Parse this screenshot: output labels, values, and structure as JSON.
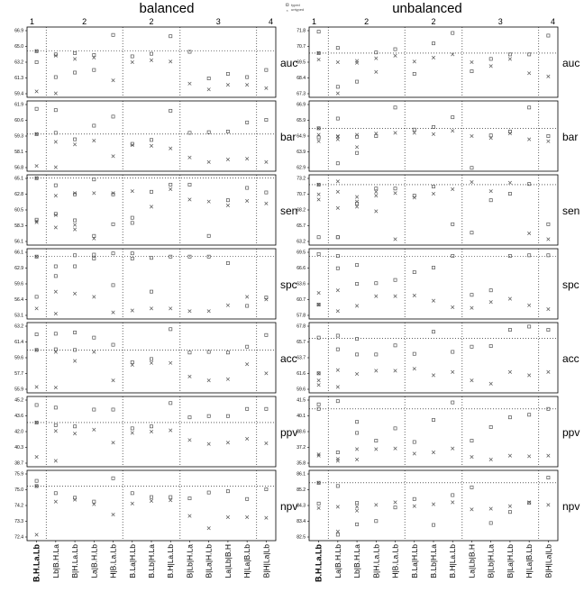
{
  "chart_data": {
    "type": "scatter",
    "panel_titles": [
      "balanced",
      "unbalanced"
    ],
    "legend": {
      "placement": "top-center",
      "entries": [
        {
          "name": "typed",
          "marker": "square"
        },
        {
          "name": "untyped",
          "marker": "cross"
        }
      ]
    },
    "group_labels": [
      "1",
      "2",
      "2",
      "3",
      "4"
    ],
    "metrics": [
      {
        "name": "auc",
        "balanced_ticks": [
          "66.9",
          "65.0",
          "63.2",
          "61.3",
          "59.4"
        ],
        "unbalanced_ticks": [
          "71.8",
          "70.7",
          "69.5",
          "68.4",
          "67.3"
        ]
      },
      {
        "name": "bar",
        "balanced_ticks": [
          "61.9",
          "60.6",
          "59.3",
          "58.1",
          "56.8"
        ],
        "unbalanced_ticks": [
          "66.9",
          "65.9",
          "64.9",
          "63.9",
          "62.9"
        ]
      },
      {
        "name": "sen",
        "balanced_ticks": [
          "65.1",
          "62.8",
          "60.5",
          "58.3",
          "56.1"
        ],
        "unbalanced_ticks": [
          "73.2",
          "70.7",
          "68.2",
          "65.7",
          "63.2"
        ]
      },
      {
        "name": "spc",
        "balanced_ticks": [
          "66.1",
          "62.9",
          "59.6",
          "56.4",
          "53.1"
        ],
        "unbalanced_ticks": [
          "69.5",
          "66.6",
          "63.6",
          "60.7",
          "57.8"
        ]
      },
      {
        "name": "acc",
        "balanced_ticks": [
          "63.2",
          "61.4",
          "59.6",
          "57.7",
          "55.9"
        ],
        "unbalanced_ticks": [
          "67.8",
          "65.7",
          "63.7",
          "61.6",
          "59.6"
        ]
      },
      {
        "name": "ppv",
        "balanced_ticks": [
          "45.2",
          "43.6",
          "42.0",
          "40.3",
          "38.7"
        ],
        "unbalanced_ticks": [
          "41.5",
          "40.1",
          "38.6",
          "37.2",
          "35.8"
        ]
      },
      {
        "name": "npv",
        "balanced_ticks": [
          "75.9",
          "75.0",
          "74.2",
          "73.3",
          "72.4"
        ],
        "unbalanced_ticks": [
          "86.1",
          "85.2",
          "84.3",
          "83.4",
          "82.5"
        ]
      }
    ],
    "balanced_methods": [
      "B.H.La.Lb",
      "Lb|B.H.La",
      "B|H.La.Lb",
      "La|B.H.Lb",
      "H|B.La.Lb",
      "B.La|H.Lb",
      "B.Lb|H.La",
      "B.H|La.Lb",
      "B|Lb|H.La",
      "B|La|H.Lb",
      "La|Lb|B.H",
      "H|La|B.Lb",
      "B|H|La|Lb"
    ],
    "unbalanced_methods": [
      "B.H.La.Lb",
      "La|B.H.Lb",
      "Lb|B.H.La",
      "B|H.La.Lb",
      "H|B.La.Lb",
      "B.La|H.Lb",
      "B.Lb|H.La",
      "B.H|La.Lb",
      "La|Lb|B.H",
      "B|Lb|H.La",
      "B|La|H.Lb",
      "H|La|B.Lb",
      "B|H|La|Lb"
    ],
    "baseline_fraction": {
      "balanced": [
        0.67,
        0.53,
        0.99,
        0.92,
        0.62,
        0.64,
        0.8
      ],
      "unbalanced": [
        0.64,
        0.62,
        0.89,
        0.92,
        0.8,
        0.85,
        0.85
      ]
    },
    "points": {
      "balanced": {
        "auc": {
          "typed": [
            0.67,
            0.62,
            0.64,
            0.61,
            0.92,
            0.59,
            0.63,
            0.9,
            0.66,
            0.25,
            0.32,
            0.27,
            0.38,
            0.5,
            0.27,
            0.34,
            0.38
          ],
          "untyped": [
            0.67,
            0.6,
            0.55,
            0.57,
            0.22,
            0.5,
            0.53,
            0.51,
            0.17,
            0.08,
            0.15,
            0.15,
            0.1,
            0.05,
            0.02
          ]
        },
        "bar": {
          "typed": [
            0.53,
            0.55,
            0.45,
            0.66,
            0.8,
            0.38,
            0.44,
            0.89,
            0.55,
            0.56,
            0.57,
            0.71,
            0.75,
            0.92,
            0.9
          ],
          "untyped": [
            0.53,
            0.41,
            0.37,
            0.43,
            0.19,
            0.36,
            0.35,
            0.31,
            0.17,
            0.1,
            0.14,
            0.15,
            0.1,
            0.04,
            0.02
          ]
        },
        "sen": {
          "typed": [
            0.99,
            0.88,
            0.74,
            0.97,
            0.74,
            0.38,
            0.78,
            0.89,
            0.89,
            0.1,
            0.65,
            0.84,
            0.77,
            0.35,
            0.44,
            0.34,
            0.1,
            0.28,
            0.3
          ],
          "untyped": [
            0.99,
            0.72,
            0.76,
            0.76,
            0.76,
            0.79,
            0.55,
            0.82,
            0.66,
            0.63,
            0.57,
            0.64,
            0.6,
            0.31,
            0.23,
            0.2,
            0.06
          ],
          "untyped_extra": [
            0.33,
            0.42,
            0.27
          ]
        },
        "spc": {
          "typed": [
            0.92,
            0.77,
            0.77,
            0.89,
            0.48,
            0.89,
            0.38,
            0.92,
            0.92,
            0.92,
            0.82,
            0.16,
            0.29,
            0.3,
            0.62,
            0.94,
            0.95,
            0.97,
            0.97,
            0.9
          ],
          "untyped": [
            0.92,
            0.38,
            0.35,
            0.3,
            0.06,
            0.09,
            0.12,
            0.12,
            0.08,
            0.08,
            0.17,
            0.3,
            0.26,
            0.12,
            0.04
          ]
        },
        "acc": {
          "typed": [
            0.62,
            0.63,
            0.62,
            0.81,
            0.7,
            0.43,
            0.48,
            0.94,
            0.58,
            0.59,
            0.58,
            0.67,
            0.85,
            0.86,
            0.87,
            0.89
          ],
          "untyped": [
            0.62,
            0.59,
            0.45,
            0.59,
            0.15,
            0.39,
            0.42,
            0.42,
            0.21,
            0.15,
            0.17,
            0.4,
            0.26,
            0.05,
            0.04
          ]
        },
        "ppv": {
          "typed": [
            0.64,
            0.6,
            0.58,
            0.84,
            0.84,
            0.55,
            0.58,
            0.94,
            0.72,
            0.74,
            0.74,
            0.85,
            0.85,
            0.91,
            0.87
          ],
          "untyped": [
            0.64,
            0.51,
            0.47,
            0.53,
            0.33,
            0.48,
            0.5,
            0.52,
            0.37,
            0.31,
            0.33,
            0.39,
            0.32,
            0.11,
            0.05
          ]
        },
        "npv": {
          "typed": [
            0.8,
            0.69,
            0.62,
            0.56,
            0.92,
            0.69,
            0.63,
            0.63,
            0.61,
            0.7,
            0.72,
            0.6,
            0.75,
            0.88
          ],
          "untyped": [
            0.8,
            0.56,
            0.59,
            0.52,
            0.36,
            0.53,
            0.57,
            0.58,
            0.34,
            0.15,
            0.32,
            0.32,
            0.31,
            0.05
          ]
        }
      },
      "unbalanced": {
        "auc": {
          "typed": [
            0.64,
            0.12,
            0.2,
            0.65,
            0.7,
            0.32,
            0.79,
            0.95,
            0.36,
            0.55,
            0.62,
            0.62,
            0.91,
            0.97,
            0.72
          ],
          "untyped": [
            0.64,
            0.02,
            0.49,
            0.56,
            0.6,
            0.51,
            0.57,
            0.62,
            0.5,
            0.44,
            0.55,
            0.33,
            0.28,
            0.54,
            0.5,
            0.52,
            0.35
          ]
        },
        "bar": {
          "typed": [
            0.62,
            0.08,
            0.24,
            0.5,
            0.94,
            0.6,
            0.64,
            0.79,
            0.01,
            0.51,
            0.57,
            0.94,
            0.5,
            0.48,
            0.77,
            0.49
          ],
          "untyped": [
            0.62,
            0.49,
            0.52,
            0.54,
            0.55,
            0.55,
            0.53,
            0.58,
            0.5,
            0.47,
            0.54,
            0.45,
            0.42,
            0.42,
            0.45,
            0.33
          ],
          "untyped_extra": [
            0.52,
            0.5
          ]
        },
        "sen": {
          "typed": [
            0.89,
            0.08,
            0.6,
            0.83,
            0.83,
            0.72,
            0.86,
            0.28,
            0.15,
            0.65,
            0.75,
            0.9,
            0.28,
            0.08,
            0.08
          ],
          "untyped": [
            0.89,
            0.94,
            0.7,
            0.48,
            0.76,
            0.69,
            0.75,
            0.82,
            0.93,
            0.79,
            0.92,
            0.14,
            0.05,
            0.74,
            0.53,
            0.55,
            0.72,
            0.05
          ],
          "untyped_extra": [
            0.66,
            0.78,
            0.63,
            0.78
          ]
        },
        "spc": {
          "typed": [
            0.18,
            0.74,
            0.5,
            0.51,
            0.56,
            0.68,
            0.75,
            0.93,
            0.33,
            0.4,
            0.93,
            0.94,
            0.94,
            0.96,
            0.93,
            0.79
          ],
          "untyped": [
            0.18,
            0.08,
            0.16,
            0.31,
            0.31,
            0.32,
            0.24,
            0.14,
            0.13,
            0.22,
            0.27,
            0.17,
            0.11,
            0.36
          ],
          "untyped_extra": [
            0.18,
            0.4
          ]
        },
        "acc": {
          "typed": [
            0.26,
            0.63,
            0.55,
            0.55,
            0.69,
            0.56,
            0.9,
            0.59,
            0.67,
            0.68,
            0.93,
            0.98,
            0.93,
            0.81,
            0.84,
            0.79
          ],
          "untyped": [
            0.26,
            0.05,
            0.25,
            0.3,
            0.3,
            0.33,
            0.23,
            0.28,
            0.15,
            0.1,
            0.28,
            0.23,
            0.28,
            0.08,
            0.31
          ],
          "untyped_extra": [
            0.15
          ]
        },
        "ppv": {
          "typed": [
            0.85,
            0.18,
            0.48,
            0.36,
            0.55,
            0.34,
            0.68,
            0.95,
            0.36,
            0.57,
            0.72,
            0.76,
            0.85,
            0.92,
            0.97,
            0.65
          ],
          "untyped": [
            0.15,
            0.05,
            0.23,
            0.23,
            0.24,
            0.16,
            0.18,
            0.24,
            0.11,
            0.07,
            0.13,
            0.12,
            0.13,
            0.13,
            0.08,
            0.07
          ]
        },
        "npv": {
          "typed": [
            0.85,
            0.05,
            0.54,
            0.26,
            0.47,
            0.6,
            0.2,
            0.66,
            0.78,
            0.23,
            0.4,
            0.54,
            0.93,
            0.53,
            0.8,
            0.21
          ],
          "untyped": [
            0.85,
            0.1,
            0.48,
            0.51,
            0.55,
            0.49,
            0.52,
            0.55,
            0.44,
            0.45,
            0.49,
            0.55,
            0.51,
            0.46,
            0.48,
            0.42
          ]
        }
      }
    }
  }
}
